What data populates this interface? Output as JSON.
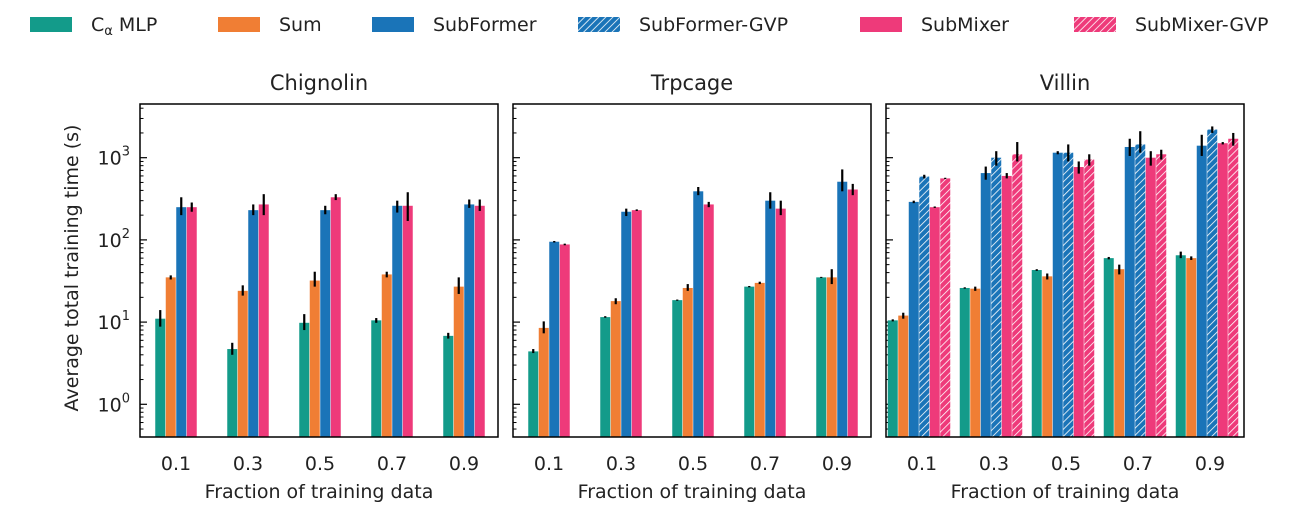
{
  "chart_data": {
    "type": "bar",
    "scale": "log",
    "ylabel": "Average total training time (s)",
    "ylim": [
      0.4,
      4500
    ],
    "yticks": [
      {
        "exp": "0"
      },
      {
        "exp": "1"
      },
      {
        "exp": "2"
      },
      {
        "exp": "3"
      }
    ],
    "ytick_base": "10",
    "legend": {
      "placement": "top",
      "entries": [
        {
          "key": "calpha",
          "label_main": "C",
          "label_sub": "α",
          "label_rest": " MLP",
          "color": "#139b8a",
          "hatched": false
        },
        {
          "key": "sum",
          "label": "Sum",
          "color": "#f07e34",
          "hatched": false
        },
        {
          "key": "subformer",
          "label": "SubFormer",
          "color": "#1a74b8",
          "hatched": false
        },
        {
          "key": "subformer_gvp",
          "label": "SubFormer-GVP",
          "color": "#1a74b8",
          "hatched": true
        },
        {
          "key": "submixer",
          "label": "SubMixer",
          "color": "#ee3a7a",
          "hatched": false
        },
        {
          "key": "submixer_gvp",
          "label": "SubMixer-GVP",
          "color": "#ee3a7a",
          "hatched": true
        }
      ]
    },
    "panels": [
      {
        "title": "Chignolin",
        "xlabel": "Fraction of training data",
        "categories": [
          "0.1",
          "0.3",
          "0.5",
          "0.7",
          "0.9"
        ],
        "series": [
          {
            "key": "calpha",
            "values": [
              11,
              4.7,
              9.8,
              10.5,
              6.8
            ],
            "err_low": [
              8.8,
              4.0,
              8.0,
              9.8,
              6.3
            ],
            "err_high": [
              14,
              5.6,
              12.5,
              11.2,
              7.4
            ]
          },
          {
            "key": "sum",
            "values": [
              35,
              24,
              32,
              38,
              27
            ],
            "err_low": [
              33,
              21,
              27,
              35,
              22
            ],
            "err_high": [
              37,
              28,
              41,
              41,
              35
            ]
          },
          {
            "key": "subformer",
            "values": [
              250,
              230,
              230,
              260,
              270
            ],
            "err_low": [
              200,
              200,
              205,
              215,
              245
            ],
            "err_high": [
              330,
              270,
              260,
              300,
              310
            ]
          },
          {
            "key": "submixer",
            "values": [
              250,
              270,
              330,
              260,
              260
            ],
            "err_low": [
              220,
              200,
              305,
              170,
              225
            ],
            "err_high": [
              285,
              360,
              360,
              380,
              310
            ]
          }
        ]
      },
      {
        "title": "Trpcage",
        "xlabel": "Fraction of training data",
        "categories": [
          "0.1",
          "0.3",
          "0.5",
          "0.7",
          "0.9"
        ],
        "series": [
          {
            "key": "calpha",
            "values": [
              4.4,
              11.5,
              18.5,
              27,
              35
            ],
            "err_low": [
              4.2,
              11.3,
              18.2,
              26.5,
              34.5
            ],
            "err_high": [
              4.7,
              11.8,
              18.8,
              27.5,
              35.5
            ]
          },
          {
            "key": "sum",
            "values": [
              8.5,
              18,
              26,
              30,
              35
            ],
            "err_low": [
              7.3,
              16.5,
              24,
              29,
              29
            ],
            "err_high": [
              10.2,
              19.5,
              29,
              31,
              44
            ]
          },
          {
            "key": "subformer",
            "values": [
              95,
              220,
              390,
              300,
              510
            ],
            "err_low": [
              93,
              195,
              350,
              240,
              390
            ],
            "err_high": [
              97,
              240,
              440,
              380,
              720
            ]
          },
          {
            "key": "submixer",
            "values": [
              88,
              230,
              270,
              240,
              410
            ],
            "err_low": [
              86,
              225,
              250,
              200,
              350
            ],
            "err_high": [
              90,
              235,
              290,
              300,
              480
            ]
          }
        ]
      },
      {
        "title": "Villin",
        "xlabel": "Fraction of training data",
        "categories": [
          "0.1",
          "0.3",
          "0.5",
          "0.7",
          "0.9"
        ],
        "series": [
          {
            "key": "calpha",
            "values": [
              10.5,
              26,
              43,
              60,
              65
            ],
            "err_low": [
              10.2,
              25.5,
              42,
              58,
              60
            ],
            "err_high": [
              10.8,
              26.5,
              44,
              62,
              72
            ]
          },
          {
            "key": "sum",
            "values": [
              12,
              25.5,
              36,
              44,
              60
            ],
            "err_low": [
              11,
              24,
              33,
              38,
              57
            ],
            "err_high": [
              13,
              27,
              39,
              50,
              63
            ]
          },
          {
            "key": "subformer",
            "values": [
              290,
              650,
              1150,
              1350,
              1400
            ],
            "err_low": [
              280,
              540,
              1100,
              1050,
              1050
            ],
            "err_high": [
              300,
              780,
              1200,
              1700,
              1900
            ]
          },
          {
            "key": "subformer_gvp",
            "values": [
              590,
              1000,
              1150,
              1450,
              2200
            ],
            "err_low": [
              560,
              800,
              900,
              1150,
              2000
            ],
            "err_high": [
              620,
              1200,
              1450,
              2100,
              2400
            ]
          },
          {
            "key": "submixer",
            "values": [
              250,
              600,
              770,
              1000,
              1500
            ],
            "err_low": [
              245,
              560,
              640,
              800,
              1450
            ],
            "err_high": [
              255,
              650,
              900,
              1200,
              1550
            ]
          },
          {
            "key": "submixer_gvp",
            "values": [
              560,
              1100,
              950,
              1100,
              1700
            ],
            "err_low": [
              550,
              900,
              800,
              950,
              1400
            ],
            "err_high": [
              570,
              1550,
              1100,
              1250,
              2000
            ]
          }
        ]
      }
    ]
  }
}
